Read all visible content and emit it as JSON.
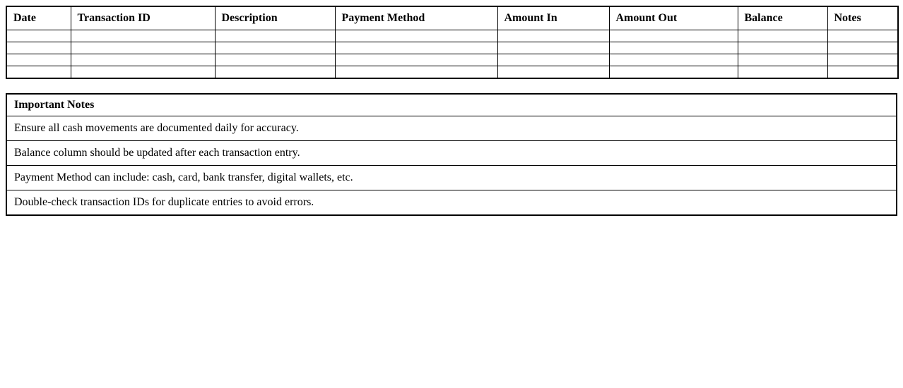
{
  "page": {
    "background_color": "#ffffff",
    "text_color": "#000000",
    "border_color": "#000000"
  },
  "transactions_table": {
    "columns": [
      "Date",
      "Transaction ID",
      "Description",
      "Payment Method",
      "Amount In",
      "Amount Out",
      "Balance",
      "Notes"
    ],
    "empty_row_count": 4
  },
  "notes_table": {
    "title": "Important Notes",
    "notes": [
      "Ensure all cash movements are documented daily for accuracy.",
      "Balance column should be updated after each transaction entry.",
      "Payment Method can include: cash, card, bank transfer, digital wallets, etc.",
      "Double-check transaction IDs for duplicate entries to avoid errors."
    ]
  }
}
